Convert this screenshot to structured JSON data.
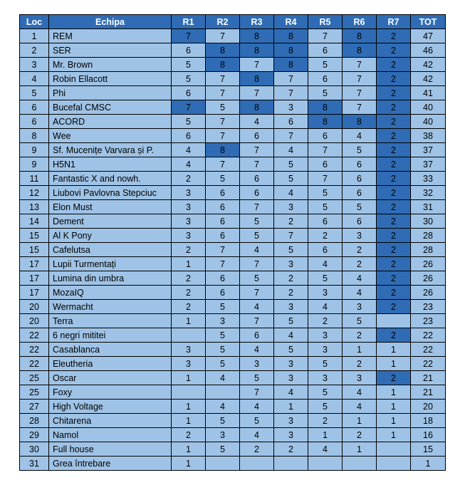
{
  "colors": {
    "header_bg": "#2f6cb5",
    "cell_bg": "#9fc3e6",
    "highlight_bg": "#2f6cb5"
  },
  "headers": [
    "Loc",
    "Echipa",
    "R1",
    "R2",
    "R3",
    "R4",
    "R5",
    "R6",
    "R7",
    "TOT"
  ],
  "rows": [
    {
      "loc": "1",
      "team": "REM",
      "r": [
        "7",
        "7",
        "8",
        "8",
        "7",
        "8",
        "2"
      ],
      "hl": [
        0,
        2,
        3,
        5,
        6
      ],
      "tot": "47"
    },
    {
      "loc": "2",
      "team": "SER",
      "r": [
        "6",
        "8",
        "8",
        "8",
        "6",
        "8",
        "2"
      ],
      "hl": [
        1,
        2,
        3,
        5,
        6
      ],
      "tot": "46"
    },
    {
      "loc": "3",
      "team": "Mr. Brown",
      "r": [
        "5",
        "8",
        "7",
        "8",
        "5",
        "7",
        "2"
      ],
      "hl": [
        1,
        3,
        6
      ],
      "tot": "42"
    },
    {
      "loc": "4",
      "team": "Robin Ellacott",
      "r": [
        "5",
        "7",
        "8",
        "7",
        "6",
        "7",
        "2"
      ],
      "hl": [
        2,
        6
      ],
      "tot": "42"
    },
    {
      "loc": "5",
      "team": "Phi",
      "r": [
        "6",
        "7",
        "7",
        "7",
        "5",
        "7",
        "2"
      ],
      "hl": [
        6
      ],
      "tot": "41"
    },
    {
      "loc": "6",
      "team": "Bucefal CMSC",
      "r": [
        "7",
        "5",
        "8",
        "3",
        "8",
        "7",
        "2"
      ],
      "hl": [
        0,
        2,
        4,
        6
      ],
      "tot": "40"
    },
    {
      "loc": "6",
      "team": "ACORD",
      "r": [
        "5",
        "7",
        "4",
        "6",
        "8",
        "8",
        "2"
      ],
      "hl": [
        4,
        5,
        6
      ],
      "tot": "40"
    },
    {
      "loc": "8",
      "team": "Wee",
      "r": [
        "6",
        "7",
        "6",
        "7",
        "6",
        "4",
        "2"
      ],
      "hl": [
        6
      ],
      "tot": "38"
    },
    {
      "loc": "9",
      "team": "Sf. Mucenițe Varvara și P.",
      "r": [
        "4",
        "8",
        "7",
        "4",
        "7",
        "5",
        "2"
      ],
      "hl": [
        1,
        6
      ],
      "tot": "37"
    },
    {
      "loc": "9",
      "team": "H5N1",
      "r": [
        "4",
        "7",
        "7",
        "5",
        "6",
        "6",
        "2"
      ],
      "hl": [
        6
      ],
      "tot": "37"
    },
    {
      "loc": "11",
      "team": "Fantastic X and nowh.",
      "r": [
        "2",
        "5",
        "6",
        "5",
        "7",
        "6",
        "2"
      ],
      "hl": [
        6
      ],
      "tot": "33"
    },
    {
      "loc": "12",
      "team": "Liubovi Pavlovna Stepciuc",
      "r": [
        "3",
        "6",
        "6",
        "4",
        "5",
        "6",
        "2"
      ],
      "hl": [
        6
      ],
      "tot": "32"
    },
    {
      "loc": "13",
      "team": "Elon Must",
      "r": [
        "3",
        "6",
        "7",
        "3",
        "5",
        "5",
        "2"
      ],
      "hl": [
        6
      ],
      "tot": "31"
    },
    {
      "loc": "14",
      "team": "Dement",
      "r": [
        "3",
        "6",
        "5",
        "2",
        "6",
        "6",
        "2"
      ],
      "hl": [
        6
      ],
      "tot": "30"
    },
    {
      "loc": "15",
      "team": "Al K Pony",
      "r": [
        "3",
        "6",
        "5",
        "7",
        "2",
        "3",
        "2"
      ],
      "hl": [
        6
      ],
      "tot": "28"
    },
    {
      "loc": "15",
      "team": "Cafelutsa",
      "r": [
        "2",
        "7",
        "4",
        "5",
        "6",
        "2",
        "2"
      ],
      "hl": [
        6
      ],
      "tot": "28"
    },
    {
      "loc": "17",
      "team": "Lupii Turmentați",
      "r": [
        "1",
        "7",
        "7",
        "3",
        "4",
        "2",
        "2"
      ],
      "hl": [
        6
      ],
      "tot": "26"
    },
    {
      "loc": "17",
      "team": "Lumina din umbra",
      "r": [
        "2",
        "6",
        "5",
        "2",
        "5",
        "4",
        "2"
      ],
      "hl": [
        6
      ],
      "tot": "26"
    },
    {
      "loc": "17",
      "team": "MozaIQ",
      "r": [
        "2",
        "6",
        "7",
        "2",
        "3",
        "4",
        "2"
      ],
      "hl": [
        6
      ],
      "tot": "26"
    },
    {
      "loc": "20",
      "team": "Wermacht",
      "r": [
        "2",
        "5",
        "4",
        "3",
        "4",
        "3",
        "2"
      ],
      "hl": [
        6
      ],
      "tot": "23"
    },
    {
      "loc": "20",
      "team": "Terra",
      "r": [
        "1",
        "3",
        "7",
        "5",
        "2",
        "5",
        ""
      ],
      "hl": [],
      "tot": "23"
    },
    {
      "loc": "22",
      "team": "6 negri mititei",
      "r": [
        "",
        "5",
        "6",
        "4",
        "3",
        "2",
        "2"
      ],
      "hl": [
        6
      ],
      "tot": "22"
    },
    {
      "loc": "22",
      "team": "Casablanca",
      "r": [
        "3",
        "5",
        "4",
        "5",
        "3",
        "1",
        "1"
      ],
      "hl": [],
      "tot": "22"
    },
    {
      "loc": "22",
      "team": "Eleutheria",
      "r": [
        "3",
        "5",
        "3",
        "3",
        "5",
        "2",
        "1"
      ],
      "hl": [],
      "tot": "22"
    },
    {
      "loc": "25",
      "team": "Oscar",
      "r": [
        "1",
        "4",
        "5",
        "3",
        "3",
        "3",
        "2"
      ],
      "hl": [
        6
      ],
      "tot": "21"
    },
    {
      "loc": "25",
      "team": "Foxy",
      "r": [
        "",
        "",
        "7",
        "4",
        "5",
        "4",
        "1"
      ],
      "hl": [],
      "tot": "21"
    },
    {
      "loc": "27",
      "team": "High Voltage",
      "r": [
        "1",
        "4",
        "4",
        "1",
        "5",
        "4",
        "1"
      ],
      "hl": [],
      "tot": "20"
    },
    {
      "loc": "28",
      "team": "Chitarena",
      "r": [
        "1",
        "5",
        "5",
        "3",
        "2",
        "1",
        "1"
      ],
      "hl": [],
      "tot": "18"
    },
    {
      "loc": "29",
      "team": "Namol",
      "r": [
        "2",
        "3",
        "4",
        "3",
        "1",
        "2",
        "1"
      ],
      "hl": [],
      "tot": "16"
    },
    {
      "loc": "30",
      "team": "Full house",
      "r": [
        "1",
        "5",
        "2",
        "2",
        "4",
        "1",
        ""
      ],
      "hl": [],
      "tot": "15"
    },
    {
      "loc": "31",
      "team": "Grea întrebare",
      "r": [
        "1",
        "",
        "",
        "",
        "",
        "",
        ""
      ],
      "hl": [],
      "tot": "1"
    }
  ]
}
